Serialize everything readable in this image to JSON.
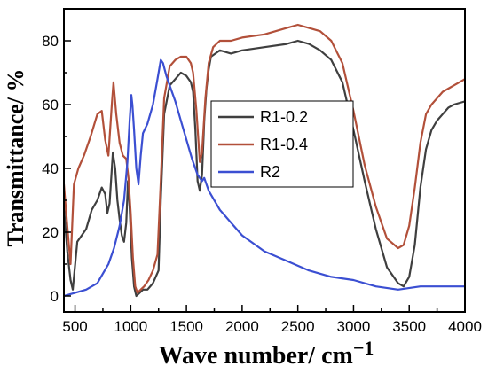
{
  "chart_data": {
    "type": "line",
    "xlabel": "Wave number/ cm",
    "xlabel_superscript": "−1",
    "ylabel": "Transmittance/ %",
    "xlim": [
      400,
      4000
    ],
    "ylim": [
      -5,
      90
    ],
    "xticks": [
      500,
      1000,
      1500,
      2000,
      2500,
      3000,
      3500,
      4000
    ],
    "yticks": [
      0,
      20,
      40,
      60,
      80
    ],
    "minor_xtick_step": 250,
    "minor_ytick_step": 10,
    "grid": false,
    "legend_position": "center-right",
    "series": [
      {
        "name": "R1-0.2",
        "color": "#3f3f3f",
        "x": [
          400,
          430,
          460,
          480,
          520,
          560,
          600,
          650,
          700,
          740,
          770,
          790,
          810,
          840,
          860,
          880,
          900,
          920,
          940,
          960,
          975,
          990,
          1010,
          1030,
          1050,
          1080,
          1110,
          1150,
          1200,
          1250,
          1270,
          1300,
          1350,
          1400,
          1450,
          1500,
          1540,
          1560,
          1580,
          1600,
          1620,
          1640,
          1660,
          1680,
          1700,
          1720,
          1760,
          1800,
          1900,
          2000,
          2200,
          2400,
          2500,
          2600,
          2700,
          2800,
          2900,
          3000,
          3100,
          3200,
          3300,
          3400,
          3450,
          3500,
          3550,
          3600,
          3650,
          3700,
          3750,
          3800,
          3850,
          3900,
          4000
        ],
        "y": [
          28,
          14,
          5,
          2,
          17,
          19,
          21,
          27,
          30,
          34,
          32,
          26,
          29,
          45,
          40,
          30,
          24,
          19,
          17,
          23,
          36,
          28,
          12,
          3,
          0,
          1,
          2,
          2,
          4,
          8,
          30,
          57,
          66,
          68,
          70,
          69,
          67,
          64,
          52,
          36,
          33,
          38,
          55,
          65,
          71,
          75,
          76,
          77,
          76,
          77,
          78,
          79,
          80,
          79,
          77,
          74,
          67,
          52,
          36,
          21,
          9,
          4,
          3,
          6,
          16,
          34,
          46,
          52,
          55,
          57,
          59,
          60,
          61
        ]
      },
      {
        "name": "R1-0.4",
        "color": "#b2503a",
        "x": [
          400,
          430,
          460,
          490,
          530,
          580,
          640,
          700,
          740,
          770,
          800,
          830,
          845,
          870,
          900,
          930,
          960,
          980,
          1000,
          1020,
          1040,
          1060,
          1090,
          1120,
          1160,
          1200,
          1240,
          1270,
          1300,
          1350,
          1400,
          1450,
          1500,
          1540,
          1560,
          1590,
          1620,
          1640,
          1670,
          1700,
          1740,
          1800,
          1900,
          2000,
          2200,
          2400,
          2500,
          2600,
          2700,
          2800,
          2900,
          3000,
          3100,
          3200,
          3300,
          3400,
          3450,
          3500,
          3550,
          3600,
          3650,
          3700,
          3750,
          3800,
          3850,
          3900,
          4000
        ],
        "y": [
          35,
          22,
          10,
          35,
          40,
          44,
          50,
          57,
          58,
          49,
          44,
          60,
          67,
          57,
          48,
          44,
          43,
          37,
          26,
          12,
          3,
          1,
          2,
          3,
          5,
          8,
          13,
          36,
          62,
          72,
          74,
          75,
          75,
          73,
          70,
          58,
          42,
          45,
          62,
          73,
          78,
          80,
          80,
          81,
          82,
          84,
          85,
          84,
          83,
          80,
          73,
          58,
          41,
          28,
          18,
          15,
          16,
          22,
          34,
          48,
          57,
          60,
          62,
          64,
          65,
          66,
          68
        ]
      },
      {
        "name": "R2",
        "color": "#3b4fd2",
        "x": [
          400,
          500,
          600,
          700,
          750,
          800,
          850,
          900,
          940,
          970,
          990,
          1005,
          1015,
          1030,
          1050,
          1070,
          1090,
          1110,
          1150,
          1200,
          1240,
          1270,
          1290,
          1320,
          1360,
          1400,
          1450,
          1500,
          1550,
          1600,
          1640,
          1660,
          1700,
          1800,
          1900,
          2000,
          2200,
          2400,
          2600,
          2800,
          3000,
          3200,
          3400,
          3600,
          3800,
          4000
        ],
        "y": [
          0,
          1,
          2,
          4,
          7,
          10,
          15,
          22,
          30,
          42,
          55,
          63,
          60,
          52,
          40,
          35,
          44,
          51,
          54,
          60,
          68,
          74,
          73,
          69,
          65,
          61,
          55,
          49,
          43,
          38,
          36,
          37,
          33,
          27,
          23,
          19,
          14,
          11,
          8,
          6,
          5,
          3,
          2,
          3,
          3,
          3
        ]
      }
    ]
  }
}
